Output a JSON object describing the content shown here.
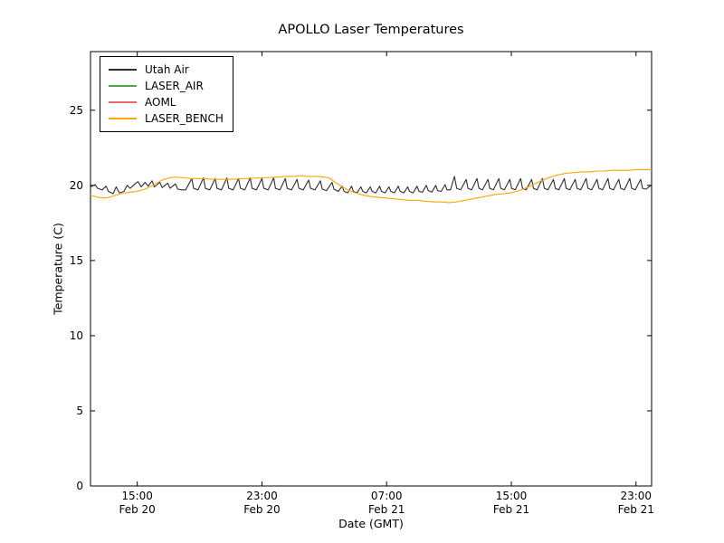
{
  "figure": {
    "background": "#ffffff",
    "border_color": "#000000"
  },
  "chart_data": {
    "type": "line",
    "title": "APOLLO Laser Temperatures",
    "xlabel": "Date (GMT)",
    "ylabel": "Temperature (C)",
    "grid": false,
    "legend_position": "upper left",
    "xlim": [
      0,
      36
    ],
    "ylim": [
      0,
      28.9
    ],
    "x_unit": "hours since Feb 20 12:00 GMT",
    "y_ticks": [
      0,
      5,
      10,
      15,
      20,
      25
    ],
    "x_ticks": [
      {
        "pos": 3,
        "time": "15:00",
        "date": "Feb 20"
      },
      {
        "pos": 11,
        "time": "23:00",
        "date": "Feb 20"
      },
      {
        "pos": 19,
        "time": "07:00",
        "date": "Feb 21"
      },
      {
        "pos": 27,
        "time": "15:00",
        "date": "Feb 21"
      },
      {
        "pos": 35,
        "time": "23:00",
        "date": "Feb 21"
      }
    ],
    "series": [
      {
        "name": "Utah Air",
        "color": "#2e2e2e",
        "points": [
          [
            0,
            19.9
          ],
          [
            0.3,
            20.05
          ],
          [
            0.45,
            19.8
          ],
          [
            0.75,
            19.7
          ],
          [
            1.0,
            19.95
          ],
          [
            1.15,
            19.6
          ],
          [
            1.45,
            19.45
          ],
          [
            1.65,
            19.9
          ],
          [
            1.85,
            19.5
          ],
          [
            2.15,
            19.6
          ],
          [
            2.35,
            20.0
          ],
          [
            2.55,
            19.8
          ],
          [
            2.85,
            20.1
          ],
          [
            3.05,
            20.25
          ],
          [
            3.25,
            19.9
          ],
          [
            3.5,
            20.2
          ],
          [
            3.7,
            19.95
          ],
          [
            3.95,
            20.3
          ],
          [
            4.1,
            19.9
          ],
          [
            4.45,
            20.2
          ],
          [
            4.6,
            19.85
          ],
          [
            4.95,
            20.15
          ],
          [
            5.1,
            19.8
          ],
          [
            5.45,
            20.1
          ],
          [
            5.6,
            19.75
          ],
          [
            5.85,
            19.7
          ],
          [
            6.1,
            19.7
          ],
          [
            6.5,
            20.45
          ],
          [
            6.62,
            19.8
          ],
          [
            6.9,
            19.7
          ],
          [
            7.25,
            20.5
          ],
          [
            7.37,
            19.8
          ],
          [
            7.65,
            19.7
          ],
          [
            8.0,
            20.45
          ],
          [
            8.12,
            19.8
          ],
          [
            8.4,
            19.7
          ],
          [
            8.75,
            20.5
          ],
          [
            8.87,
            19.8
          ],
          [
            9.15,
            19.7
          ],
          [
            9.5,
            20.45
          ],
          [
            9.62,
            19.8
          ],
          [
            9.9,
            19.7
          ],
          [
            10.25,
            20.5
          ],
          [
            10.37,
            19.8
          ],
          [
            10.65,
            19.7
          ],
          [
            11.0,
            20.45
          ],
          [
            11.12,
            19.8
          ],
          [
            11.4,
            19.7
          ],
          [
            11.75,
            20.5
          ],
          [
            11.87,
            19.8
          ],
          [
            12.15,
            19.7
          ],
          [
            12.5,
            20.45
          ],
          [
            12.62,
            19.8
          ],
          [
            12.9,
            19.7
          ],
          [
            13.25,
            20.4
          ],
          [
            13.37,
            19.8
          ],
          [
            13.65,
            19.7
          ],
          [
            14.0,
            20.35
          ],
          [
            14.12,
            19.8
          ],
          [
            14.4,
            19.7
          ],
          [
            14.75,
            20.3
          ],
          [
            14.87,
            19.75
          ],
          [
            15.15,
            19.65
          ],
          [
            15.5,
            20.2
          ],
          [
            15.62,
            19.75
          ],
          [
            15.9,
            19.6
          ],
          [
            16.15,
            19.95
          ],
          [
            16.27,
            19.6
          ],
          [
            16.5,
            19.5
          ],
          [
            16.75,
            19.95
          ],
          [
            16.87,
            19.6
          ],
          [
            17.1,
            19.5
          ],
          [
            17.35,
            19.9
          ],
          [
            17.47,
            19.6
          ],
          [
            17.7,
            19.5
          ],
          [
            17.95,
            19.9
          ],
          [
            18.07,
            19.6
          ],
          [
            18.3,
            19.5
          ],
          [
            18.55,
            19.95
          ],
          [
            18.67,
            19.6
          ],
          [
            18.9,
            19.5
          ],
          [
            19.15,
            19.9
          ],
          [
            19.27,
            19.6
          ],
          [
            19.5,
            19.5
          ],
          [
            19.75,
            19.95
          ],
          [
            19.87,
            19.6
          ],
          [
            20.1,
            19.5
          ],
          [
            20.35,
            19.9
          ],
          [
            20.47,
            19.6
          ],
          [
            20.7,
            19.5
          ],
          [
            20.95,
            19.95
          ],
          [
            21.07,
            19.6
          ],
          [
            21.3,
            19.55
          ],
          [
            21.55,
            20.0
          ],
          [
            21.67,
            19.65
          ],
          [
            21.9,
            19.55
          ],
          [
            22.15,
            20.0
          ],
          [
            22.27,
            19.65
          ],
          [
            22.5,
            19.6
          ],
          [
            22.75,
            20.05
          ],
          [
            22.87,
            19.7
          ],
          [
            23.1,
            19.7
          ],
          [
            23.35,
            20.6
          ],
          [
            23.5,
            19.8
          ],
          [
            23.75,
            19.7
          ],
          [
            24.1,
            20.4
          ],
          [
            24.22,
            19.8
          ],
          [
            24.45,
            19.7
          ],
          [
            24.8,
            20.45
          ],
          [
            24.92,
            19.8
          ],
          [
            25.15,
            19.7
          ],
          [
            25.5,
            20.4
          ],
          [
            25.62,
            19.8
          ],
          [
            25.85,
            19.7
          ],
          [
            26.2,
            20.45
          ],
          [
            26.32,
            19.8
          ],
          [
            26.55,
            19.7
          ],
          [
            26.9,
            20.4
          ],
          [
            27.02,
            19.8
          ],
          [
            27.25,
            19.7
          ],
          [
            27.6,
            20.45
          ],
          [
            27.72,
            19.8
          ],
          [
            27.95,
            19.7
          ],
          [
            28.3,
            20.4
          ],
          [
            28.42,
            19.8
          ],
          [
            28.65,
            19.7
          ],
          [
            29.0,
            20.45
          ],
          [
            29.12,
            19.8
          ],
          [
            29.35,
            19.7
          ],
          [
            29.7,
            20.4
          ],
          [
            29.82,
            19.8
          ],
          [
            30.05,
            19.7
          ],
          [
            30.4,
            20.45
          ],
          [
            30.52,
            19.8
          ],
          [
            30.75,
            19.7
          ],
          [
            31.1,
            20.4
          ],
          [
            31.22,
            19.8
          ],
          [
            31.45,
            19.7
          ],
          [
            31.8,
            20.45
          ],
          [
            31.92,
            19.8
          ],
          [
            32.15,
            19.7
          ],
          [
            32.5,
            20.4
          ],
          [
            32.62,
            19.8
          ],
          [
            32.85,
            19.7
          ],
          [
            33.2,
            20.45
          ],
          [
            33.32,
            19.8
          ],
          [
            33.55,
            19.7
          ],
          [
            33.9,
            20.4
          ],
          [
            34.02,
            19.8
          ],
          [
            34.25,
            19.7
          ],
          [
            34.6,
            20.45
          ],
          [
            34.72,
            19.8
          ],
          [
            34.95,
            19.7
          ],
          [
            35.3,
            20.4
          ],
          [
            35.42,
            19.8
          ],
          [
            35.65,
            19.75
          ],
          [
            35.95,
            20.0
          ],
          [
            36.0,
            19.9
          ]
        ]
      },
      {
        "name": "LASER_AIR",
        "color": "#4ca64c",
        "points": []
      },
      {
        "name": "AOML",
        "color": "#e96a6a",
        "points": []
      },
      {
        "name": "LASER_BENCH",
        "color": "#ffa500",
        "points": [
          [
            0,
            19.35
          ],
          [
            0.5,
            19.2
          ],
          [
            1,
            19.15
          ],
          [
            1.5,
            19.3
          ],
          [
            2,
            19.45
          ],
          [
            2.5,
            19.55
          ],
          [
            3,
            19.6
          ],
          [
            3.5,
            19.75
          ],
          [
            4,
            20.0
          ],
          [
            4.5,
            20.3
          ],
          [
            5,
            20.5
          ],
          [
            5.5,
            20.55
          ],
          [
            6,
            20.5
          ],
          [
            6.5,
            20.45
          ],
          [
            7,
            20.45
          ],
          [
            8,
            20.4
          ],
          [
            9,
            20.4
          ],
          [
            10,
            20.45
          ],
          [
            11,
            20.5
          ],
          [
            12,
            20.55
          ],
          [
            12.5,
            20.6
          ],
          [
            13,
            20.6
          ],
          [
            13.5,
            20.65
          ],
          [
            14,
            20.6
          ],
          [
            14.5,
            20.6
          ],
          [
            15,
            20.55
          ],
          [
            15.3,
            20.5
          ],
          [
            15.7,
            20.2
          ],
          [
            16,
            20.0
          ],
          [
            16.5,
            19.7
          ],
          [
            17,
            19.5
          ],
          [
            17.5,
            19.35
          ],
          [
            18,
            19.25
          ],
          [
            18.5,
            19.2
          ],
          [
            19,
            19.15
          ],
          [
            19.5,
            19.1
          ],
          [
            20,
            19.05
          ],
          [
            20.5,
            19.0
          ],
          [
            21,
            19.0
          ],
          [
            21.5,
            18.95
          ],
          [
            22,
            18.9
          ],
          [
            22.5,
            18.9
          ],
          [
            23,
            18.85
          ],
          [
            23.5,
            18.9
          ],
          [
            24,
            19.0
          ],
          [
            24.5,
            19.1
          ],
          [
            25,
            19.2
          ],
          [
            25.5,
            19.3
          ],
          [
            26,
            19.4
          ],
          [
            26.5,
            19.45
          ],
          [
            27,
            19.5
          ],
          [
            27.5,
            19.65
          ],
          [
            28,
            19.85
          ],
          [
            28.5,
            20.1
          ],
          [
            29,
            20.35
          ],
          [
            29.5,
            20.55
          ],
          [
            30,
            20.7
          ],
          [
            30.5,
            20.8
          ],
          [
            31,
            20.85
          ],
          [
            31.5,
            20.9
          ],
          [
            32,
            20.9
          ],
          [
            32.5,
            20.95
          ],
          [
            33,
            20.95
          ],
          [
            33.5,
            21.0
          ],
          [
            34,
            21.0
          ],
          [
            34.5,
            21.0
          ],
          [
            35,
            21.05
          ],
          [
            35.5,
            21.05
          ],
          [
            36,
            21.05
          ]
        ]
      }
    ]
  }
}
